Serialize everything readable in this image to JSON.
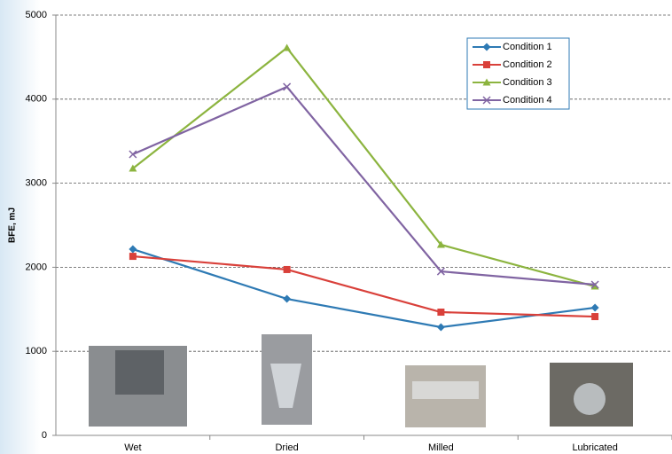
{
  "chart_data": {
    "type": "line",
    "y_label": "BFE, mJ",
    "categories": [
      "Wet",
      "Dried",
      "Milled",
      "Lubricated"
    ],
    "series": [
      {
        "name": "Condition 1",
        "color": "#2e7ab4",
        "marker": "diamond",
        "values": [
          2215,
          1624,
          1287,
          1519
        ]
      },
      {
        "name": "Condition 2",
        "color": "#d9403a",
        "marker": "square",
        "values": [
          2130,
          1973,
          1466,
          1413
        ]
      },
      {
        "name": "Condition 3",
        "color": "#8cb43f",
        "marker": "triangle",
        "values": [
          3175,
          4610,
          2268,
          1772
        ]
      },
      {
        "name": "Condition 4",
        "color": "#8064a2",
        "marker": "x",
        "values": [
          3344,
          4146,
          1951,
          1793
        ]
      }
    ],
    "ylim": [
      0,
      5000
    ],
    "yticks": [
      0,
      1000,
      2000,
      3000,
      4000,
      5000
    ],
    "grid": true
  }
}
